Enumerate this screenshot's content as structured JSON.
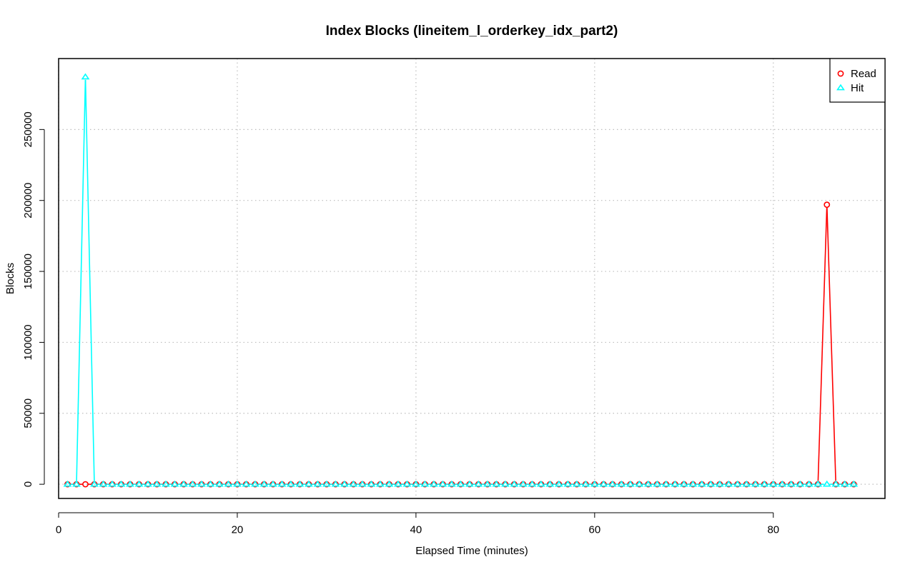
{
  "chart_data": {
    "type": "line",
    "title": "Index Blocks (lineitem_l_orderkey_idx_part2)",
    "xlabel": "Elapsed Time (minutes)",
    "ylabel": "Blocks",
    "xlim": [
      0,
      92.5
    ],
    "ylim": [
      -10000,
      300000
    ],
    "x_ticks": [
      0,
      20,
      40,
      60,
      80
    ],
    "y_ticks": [
      0,
      50000,
      100000,
      150000,
      200000,
      250000
    ],
    "grid": true,
    "legend_position": "top-right",
    "x_start": 1,
    "x_end": 89,
    "series": [
      {
        "name": "Read",
        "color": "#ff0000",
        "marker": "circle",
        "baseline": 0,
        "overrides": [
          {
            "x": 86,
            "y": 197000
          }
        ]
      },
      {
        "name": "Hit",
        "color": "#00ffff",
        "marker": "triangle",
        "baseline": 0,
        "overrides": [
          {
            "x": 3,
            "y": 287000
          }
        ]
      }
    ]
  }
}
